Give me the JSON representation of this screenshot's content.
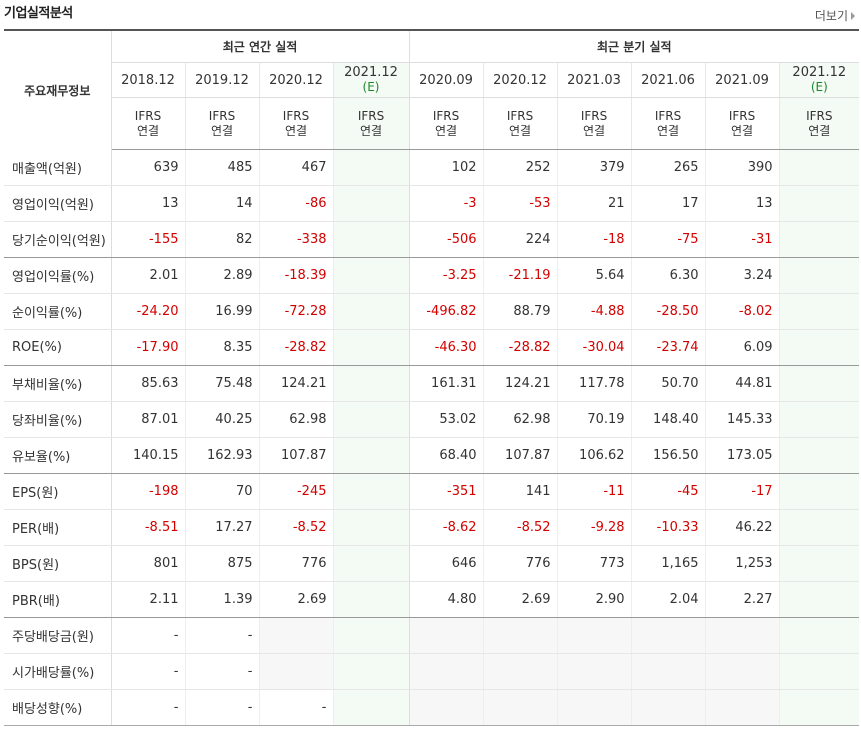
{
  "header": {
    "title": "기업실적분석",
    "more_label": "더보기"
  },
  "table": {
    "row_header_label": "주요재무정보",
    "annual_group_label": "최근 연간 실적",
    "quarter_group_label": "최근 분기 실적",
    "periods": [
      {
        "label": "2018.12",
        "est": ""
      },
      {
        "label": "2019.12",
        "est": ""
      },
      {
        "label": "2020.12",
        "est": ""
      },
      {
        "label": "2021.12",
        "est": "(E)"
      },
      {
        "label": "2020.09",
        "est": ""
      },
      {
        "label": "2020.12",
        "est": ""
      },
      {
        "label": "2021.03",
        "est": ""
      },
      {
        "label": "2021.06",
        "est": ""
      },
      {
        "label": "2021.09",
        "est": ""
      },
      {
        "label": "2021.12",
        "est": "(E)"
      }
    ],
    "ifrs_line1": "IFRS",
    "ifrs_line2": "연결",
    "rows": [
      {
        "label": "매출액(억원)",
        "values": [
          "639",
          "485",
          "467",
          "",
          "102",
          "252",
          "379",
          "265",
          "390",
          ""
        ]
      },
      {
        "label": "영업이익(억원)",
        "values": [
          "13",
          "14",
          "-86",
          "",
          "-3",
          "-53",
          "21",
          "17",
          "13",
          ""
        ]
      },
      {
        "label": "당기순이익(억원)",
        "values": [
          "-155",
          "82",
          "-338",
          "",
          "-506",
          "224",
          "-18",
          "-75",
          "-31",
          ""
        ]
      },
      {
        "label": "영업이익률(%)",
        "values": [
          "2.01",
          "2.89",
          "-18.39",
          "",
          "-3.25",
          "-21.19",
          "5.64",
          "6.30",
          "3.24",
          ""
        ]
      },
      {
        "label": "순이익률(%)",
        "values": [
          "-24.20",
          "16.99",
          "-72.28",
          "",
          "-496.82",
          "88.79",
          "-4.88",
          "-28.50",
          "-8.02",
          ""
        ]
      },
      {
        "label": "ROE(%)",
        "values": [
          "-17.90",
          "8.35",
          "-28.82",
          "",
          "-46.30",
          "-28.82",
          "-30.04",
          "-23.74",
          "6.09",
          ""
        ]
      },
      {
        "label": "부채비율(%)",
        "values": [
          "85.63",
          "75.48",
          "124.21",
          "",
          "161.31",
          "124.21",
          "117.78",
          "50.70",
          "44.81",
          ""
        ]
      },
      {
        "label": "당좌비율(%)",
        "values": [
          "87.01",
          "40.25",
          "62.98",
          "",
          "53.02",
          "62.98",
          "70.19",
          "148.40",
          "145.33",
          ""
        ]
      },
      {
        "label": "유보율(%)",
        "values": [
          "140.15",
          "162.93",
          "107.87",
          "",
          "68.40",
          "107.87",
          "106.62",
          "156.50",
          "173.05",
          ""
        ]
      },
      {
        "label": "EPS(원)",
        "values": [
          "-198",
          "70",
          "-245",
          "",
          "-351",
          "141",
          "-11",
          "-45",
          "-17",
          ""
        ]
      },
      {
        "label": "PER(배)",
        "values": [
          "-8.51",
          "17.27",
          "-8.52",
          "",
          "-8.62",
          "-8.52",
          "-9.28",
          "-10.33",
          "46.22",
          ""
        ]
      },
      {
        "label": "BPS(원)",
        "values": [
          "801",
          "875",
          "776",
          "",
          "646",
          "776",
          "773",
          "1,165",
          "1,253",
          ""
        ]
      },
      {
        "label": "PBR(배)",
        "values": [
          "2.11",
          "1.39",
          "2.69",
          "",
          "4.80",
          "2.69",
          "2.90",
          "2.04",
          "2.27",
          ""
        ]
      },
      {
        "label": "주당배당금(원)",
        "values": [
          "-",
          "-",
          "",
          "",
          "",
          "",
          "",
          "",
          "",
          ""
        ]
      },
      {
        "label": "시가배당률(%)",
        "values": [
          "-",
          "-",
          "",
          "",
          "",
          "",
          "",
          "",
          "",
          ""
        ]
      },
      {
        "label": "배당성향(%)",
        "values": [
          "-",
          "-",
          "-",
          "",
          "",
          "",
          "",
          "",
          "",
          ""
        ]
      }
    ]
  }
}
